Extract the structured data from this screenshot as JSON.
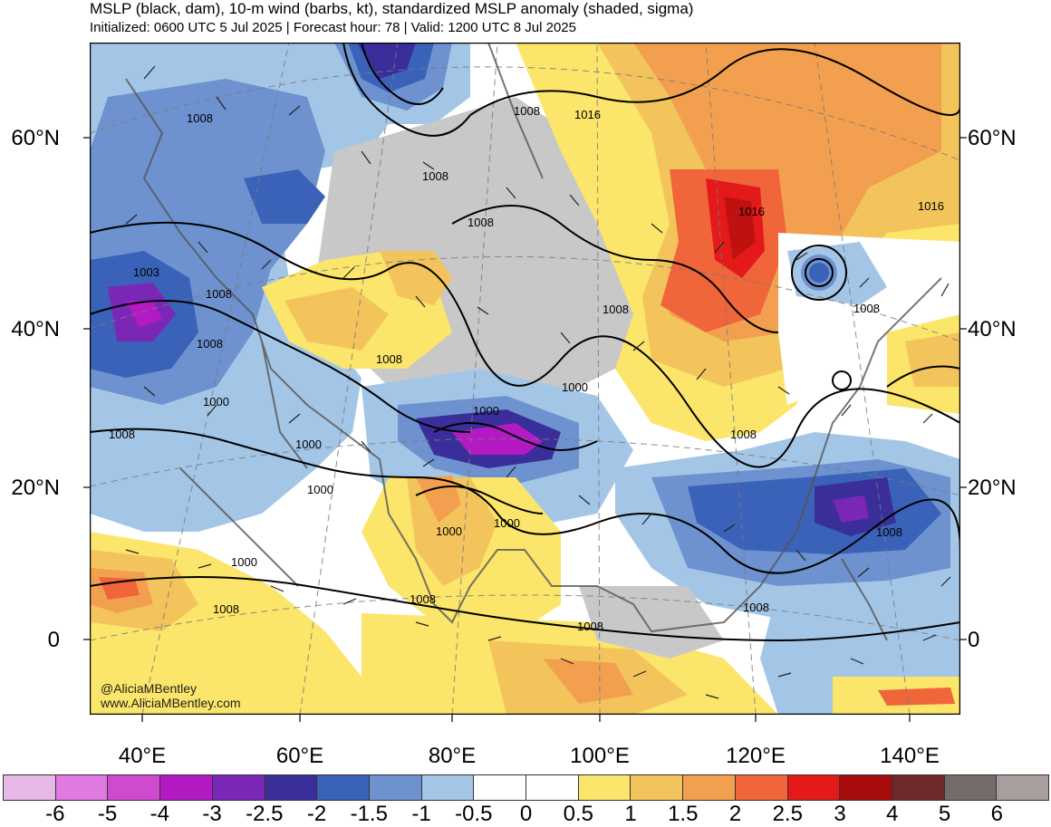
{
  "header": {
    "title": "MSLP (black, dam), 10-m wind (barbs, kt), standardized MSLP anomaly (shaded, sigma)",
    "subtitle": "Initialized: 0600 UTC 5 Jul 2025 | Forecast hour: 78 | Valid: 1200 UTC 8 Jul 2025"
  },
  "map": {
    "region": "Asia",
    "watermark": {
      "line1": "@AliciaMBentley",
      "line2": "www.AliciaMBentley.com"
    },
    "lat_labels": [
      "60°N",
      "40°N",
      "20°N",
      "0"
    ],
    "lon_labels": [
      "40°E",
      "60°E",
      "80°E",
      "100°E",
      "120°E",
      "140°E"
    ],
    "contour_labels": [
      "1008",
      "1008",
      "1016",
      "1008",
      "1008",
      "1016",
      "1016",
      "1003",
      "1008",
      "1008",
      "1008",
      "1008",
      "1008",
      "1000",
      "1000",
      "1000",
      "1000",
      "1000",
      "1000",
      "1000",
      "1008",
      "1000",
      "1008",
      "1008",
      "1008",
      "1008",
      "1008",
      "1008"
    ]
  },
  "colorbar": {
    "colors": [
      "#e8b8e8",
      "#e07ae0",
      "#d04ad0",
      "#b31ac3",
      "#7a27b8",
      "#3a2f9a",
      "#3a62b8",
      "#6d92cf",
      "#a4c6e6",
      "#ffffff",
      "#ffffff",
      "#fbe56a",
      "#f4c45c",
      "#f2a050",
      "#f0653a",
      "#e41a1a",
      "#a80b0b",
      "#6e2a2a",
      "#766b6b",
      "#a99e9e"
    ],
    "labels": [
      "-6",
      "-5",
      "-4",
      "-3",
      "-2.5",
      "-2",
      "-1.5",
      "-1",
      "-0.5",
      "0",
      "0.5",
      "1",
      "1.5",
      "2",
      "2.5",
      "3",
      "4",
      "5",
      "6"
    ]
  }
}
